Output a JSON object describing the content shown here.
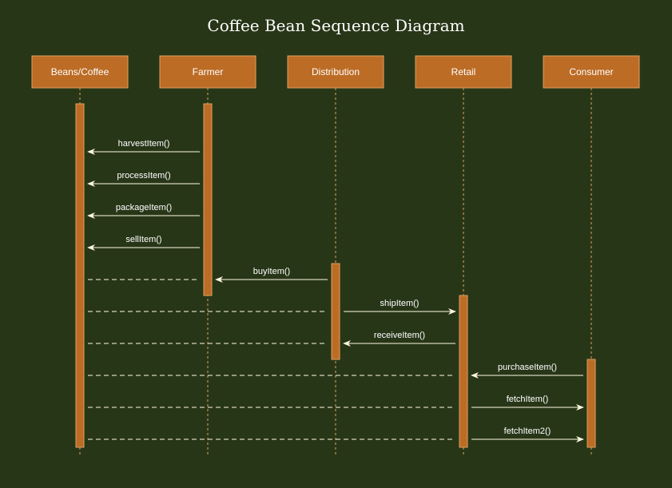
{
  "title": "Coffee Bean Sequence Diagram",
  "colors": {
    "background": "#283618",
    "actor_fill": "#BC6C25",
    "actor_stroke": "#DDA15E",
    "activation_fill": "#BC6C25",
    "line": "#FEFAE0",
    "text": "#FFFFFF"
  },
  "actors": [
    {
      "id": "beans",
      "label": "Beans/Coffee"
    },
    {
      "id": "farmer",
      "label": "Farmer"
    },
    {
      "id": "distribution",
      "label": "Distribution"
    },
    {
      "id": "retail",
      "label": "Retail"
    },
    {
      "id": "consumer",
      "label": "Consumer"
    }
  ],
  "activations": [
    {
      "actor": "beans",
      "from_step": 0,
      "to_step": 11
    },
    {
      "actor": "farmer",
      "from_step": 0,
      "to_step": 5.5
    },
    {
      "actor": "distribution",
      "from_step": 5,
      "to_step": 8
    },
    {
      "actor": "retail",
      "from_step": 6,
      "to_step": 11
    },
    {
      "actor": "consumer",
      "from_step": 8,
      "to_step": 11
    }
  ],
  "messages": [
    {
      "from": "farmer",
      "to": "beans",
      "label": "harvestItem()",
      "style": "solid"
    },
    {
      "from": "farmer",
      "to": "beans",
      "label": "processItem()",
      "style": "solid"
    },
    {
      "from": "farmer",
      "to": "beans",
      "label": "packageItem()",
      "style": "solid"
    },
    {
      "from": "farmer",
      "to": "beans",
      "label": "sellItem()",
      "style": "solid"
    },
    {
      "from": "distribution",
      "to": "farmer",
      "label": "buyItem()",
      "style": "solid",
      "return_from": "beans"
    },
    {
      "from": "distribution",
      "to": "retail",
      "label": "shipItem()",
      "style": "solid",
      "return_from": "beans"
    },
    {
      "from": "retail",
      "to": "distribution",
      "label": "receiveItem()",
      "style": "solid",
      "return_from": "beans"
    },
    {
      "from": "consumer",
      "to": "retail",
      "label": "purchaseItem()",
      "style": "solid",
      "return_from": "beans"
    },
    {
      "from": "retail",
      "to": "consumer",
      "label": "fetchItem()",
      "style": "solid",
      "return_from": "beans"
    },
    {
      "from": "retail",
      "to": "consumer",
      "label": "fetchItem2()",
      "style": "solid",
      "return_from": "beans"
    }
  ]
}
